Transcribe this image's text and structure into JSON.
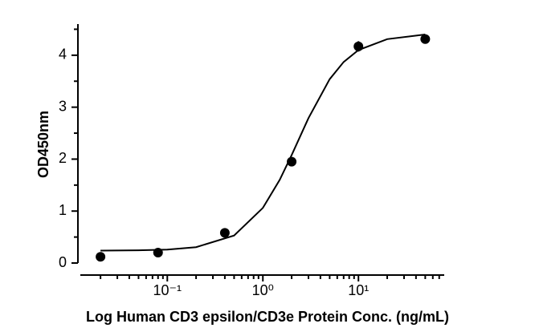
{
  "chart_data": {
    "type": "scatter",
    "x_label": "Log Human CD3 epsilon/CD3e Protein Conc. (ng/mL)",
    "y_label": "OD450nm",
    "log_x": true,
    "xlim": [
      0.0123,
      79
    ],
    "ylim": [
      0,
      4.6
    ],
    "xticks": [
      {
        "value": 0.1,
        "label": "10⁻¹"
      },
      {
        "value": 1,
        "label": "10⁰"
      },
      {
        "value": 10,
        "label": "10¹"
      }
    ],
    "xminorticks": [
      0.02,
      0.03,
      0.04,
      0.05,
      0.06,
      0.07,
      0.08,
      0.09,
      0.2,
      0.3,
      0.4,
      0.5,
      0.6,
      0.7,
      0.8,
      0.9,
      2,
      3,
      4,
      5,
      6,
      7,
      8,
      9,
      20,
      30,
      40,
      50,
      60,
      70
    ],
    "yticks": [
      0,
      1,
      2,
      3,
      4
    ],
    "yminorticks": [
      0.5,
      1.5,
      2.5,
      3.5,
      4.5
    ],
    "color": "#000000",
    "x": [
      0.02,
      0.08,
      0.4,
      2,
      10,
      50
    ],
    "values": [
      0.12,
      0.2,
      0.58,
      1.95,
      4.17,
      4.31
    ],
    "errors": [
      0,
      0,
      0,
      0,
      0.1,
      0
    ],
    "fit": {
      "x": [
        0.02,
        0.05,
        0.1,
        0.2,
        0.5,
        1,
        1.5,
        2,
        3,
        5,
        7,
        10,
        20,
        50
      ],
      "values": [
        0.24,
        0.246,
        0.26,
        0.305,
        0.53,
        1.06,
        1.6,
        2.08,
        2.79,
        3.54,
        3.87,
        4.1,
        4.31,
        4.4
      ]
    }
  }
}
